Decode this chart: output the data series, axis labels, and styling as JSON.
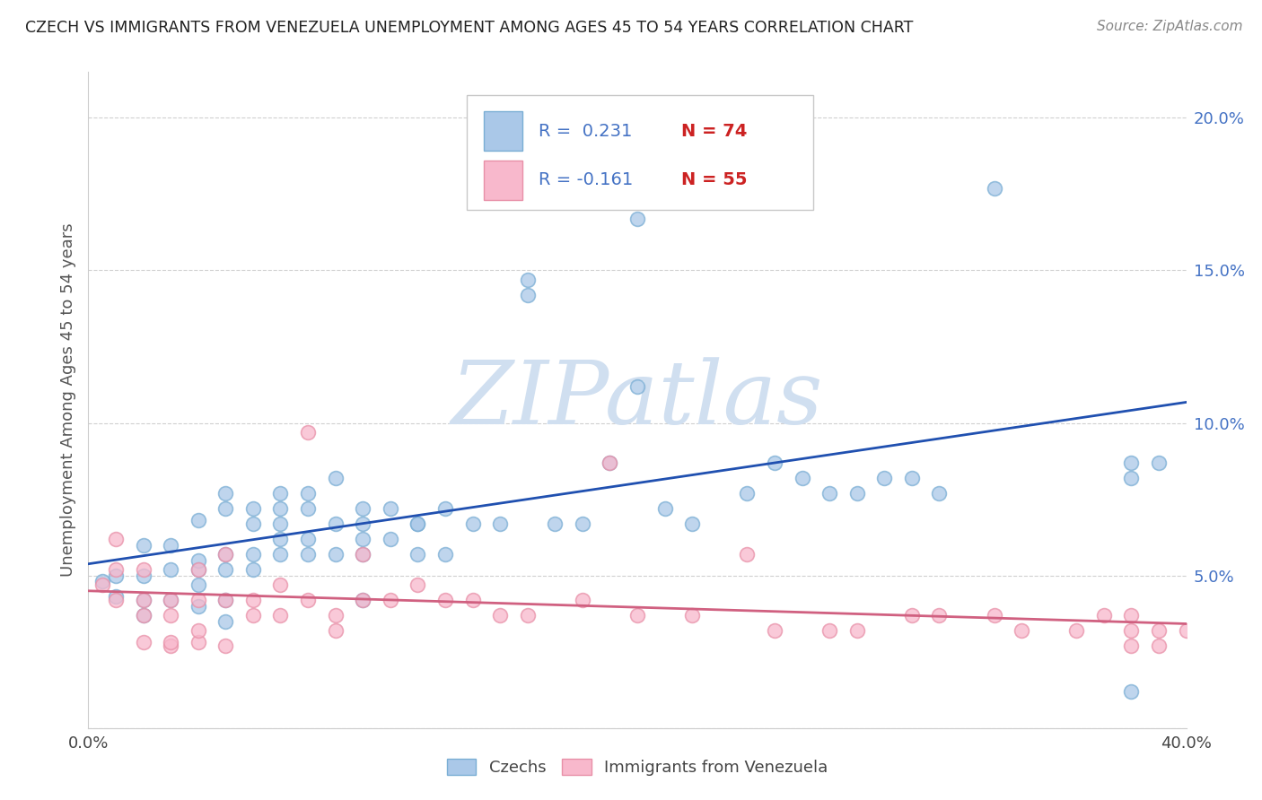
{
  "title": "CZECH VS IMMIGRANTS FROM VENEZUELA UNEMPLOYMENT AMONG AGES 45 TO 54 YEARS CORRELATION CHART",
  "source": "Source: ZipAtlas.com",
  "ylabel": "Unemployment Among Ages 45 to 54 years",
  "yticks": [
    0.0,
    0.05,
    0.1,
    0.15,
    0.2
  ],
  "ytick_labels": [
    "",
    "5.0%",
    "10.0%",
    "15.0%",
    "20.0%"
  ],
  "xlim": [
    0.0,
    0.4
  ],
  "ylim": [
    0.0,
    0.215
  ],
  "czech_R": 0.231,
  "czech_N": 74,
  "venez_R": -0.161,
  "venez_N": 55,
  "czech_color_face": "#aac8e8",
  "czech_color_edge": "#7aaed4",
  "venez_color_face": "#f8b8cc",
  "venez_color_edge": "#e890a8",
  "czech_line_color": "#2050b0",
  "venez_line_color": "#d06080",
  "watermark_color": "#d0dff0",
  "background_color": "#ffffff",
  "grid_color": "#d0d0d0",
  "title_color": "#222222",
  "source_color": "#888888",
  "ytick_color": "#4472c4",
  "xtick_color": "#444444",
  "ylabel_color": "#555555",
  "legend_R_color": "#4472c4",
  "legend_N_color": "#cc2222",
  "czech_scatter_x": [
    0.005,
    0.01,
    0.01,
    0.02,
    0.02,
    0.02,
    0.02,
    0.03,
    0.03,
    0.03,
    0.04,
    0.04,
    0.04,
    0.04,
    0.04,
    0.05,
    0.05,
    0.05,
    0.05,
    0.05,
    0.05,
    0.06,
    0.06,
    0.06,
    0.06,
    0.07,
    0.07,
    0.07,
    0.07,
    0.07,
    0.08,
    0.08,
    0.08,
    0.08,
    0.09,
    0.09,
    0.09,
    0.1,
    0.1,
    0.1,
    0.1,
    0.1,
    0.11,
    0.11,
    0.12,
    0.12,
    0.12,
    0.13,
    0.13,
    0.14,
    0.15,
    0.16,
    0.16,
    0.17,
    0.18,
    0.19,
    0.2,
    0.2,
    0.21,
    0.22,
    0.23,
    0.24,
    0.25,
    0.26,
    0.27,
    0.28,
    0.29,
    0.3,
    0.31,
    0.33,
    0.38,
    0.38,
    0.38,
    0.39
  ],
  "czech_scatter_y": [
    0.048,
    0.05,
    0.043,
    0.05,
    0.042,
    0.06,
    0.037,
    0.052,
    0.042,
    0.06,
    0.047,
    0.052,
    0.068,
    0.04,
    0.055,
    0.052,
    0.057,
    0.072,
    0.077,
    0.042,
    0.035,
    0.057,
    0.067,
    0.072,
    0.052,
    0.062,
    0.072,
    0.067,
    0.057,
    0.077,
    0.072,
    0.057,
    0.077,
    0.062,
    0.067,
    0.082,
    0.057,
    0.067,
    0.062,
    0.057,
    0.042,
    0.072,
    0.072,
    0.062,
    0.067,
    0.067,
    0.057,
    0.072,
    0.057,
    0.067,
    0.067,
    0.147,
    0.142,
    0.067,
    0.067,
    0.087,
    0.167,
    0.112,
    0.072,
    0.067,
    0.197,
    0.077,
    0.087,
    0.082,
    0.077,
    0.077,
    0.082,
    0.082,
    0.077,
    0.177,
    0.012,
    0.082,
    0.087,
    0.087
  ],
  "venez_scatter_x": [
    0.005,
    0.01,
    0.01,
    0.01,
    0.02,
    0.02,
    0.02,
    0.02,
    0.03,
    0.03,
    0.03,
    0.03,
    0.04,
    0.04,
    0.04,
    0.04,
    0.05,
    0.05,
    0.05,
    0.06,
    0.06,
    0.07,
    0.07,
    0.08,
    0.08,
    0.09,
    0.09,
    0.1,
    0.1,
    0.11,
    0.12,
    0.13,
    0.14,
    0.15,
    0.16,
    0.18,
    0.19,
    0.2,
    0.22,
    0.24,
    0.25,
    0.27,
    0.28,
    0.3,
    0.31,
    0.33,
    0.34,
    0.36,
    0.37,
    0.38,
    0.38,
    0.38,
    0.39,
    0.39,
    0.4
  ],
  "venez_scatter_y": [
    0.047,
    0.042,
    0.052,
    0.062,
    0.037,
    0.042,
    0.052,
    0.028,
    0.042,
    0.027,
    0.037,
    0.028,
    0.042,
    0.028,
    0.032,
    0.052,
    0.042,
    0.027,
    0.057,
    0.042,
    0.037,
    0.047,
    0.037,
    0.042,
    0.097,
    0.037,
    0.032,
    0.042,
    0.057,
    0.042,
    0.047,
    0.042,
    0.042,
    0.037,
    0.037,
    0.042,
    0.087,
    0.037,
    0.037,
    0.057,
    0.032,
    0.032,
    0.032,
    0.037,
    0.037,
    0.037,
    0.032,
    0.032,
    0.037,
    0.032,
    0.027,
    0.037,
    0.032,
    0.027,
    0.032
  ]
}
